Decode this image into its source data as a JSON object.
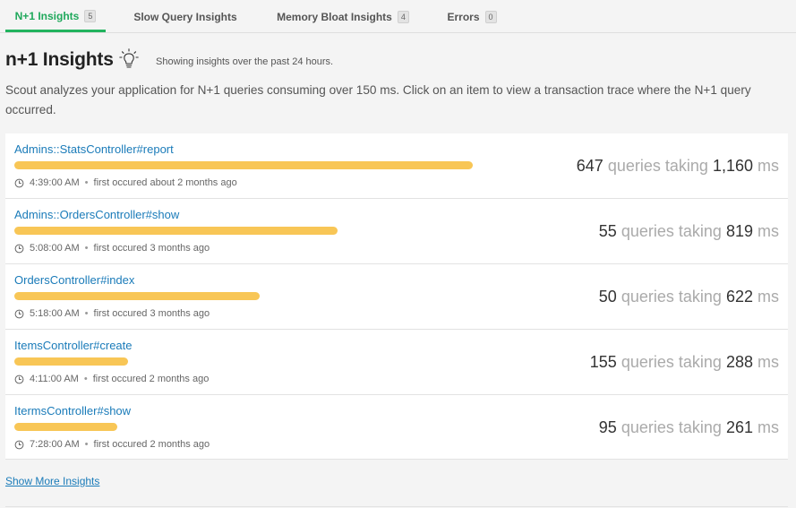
{
  "tabs": [
    {
      "label": "N+1 Insights",
      "badge": "5",
      "active": true
    },
    {
      "label": "Slow Query Insights",
      "badge": "",
      "active": false
    },
    {
      "label": "Memory Bloat Insights",
      "badge": "4",
      "active": false
    },
    {
      "label": "Errors",
      "badge": "0",
      "active": false
    }
  ],
  "header": {
    "title": "n+1 Insights",
    "icon": "lightbulb-icon",
    "subtitle": "Showing insights over the past 24 hours."
  },
  "description": "Scout analyzes your application for N+1 queries consuming over 150 ms. Click on an item to view a transaction trace where the N+1 query occurred.",
  "insights": [
    {
      "name": "Admins::StatsController#report",
      "time": "4:39:00 AM",
      "first_occured": "first occured about 2 months ago",
      "queries": "647",
      "taking_ms": "1,160",
      "bar_fraction": 1.0
    },
    {
      "name": "Admins::OrdersController#show",
      "time": "5:08:00 AM",
      "first_occured": "first occured 3 months ago",
      "queries": "55",
      "taking_ms": "819",
      "bar_fraction": 0.706
    },
    {
      "name": "OrdersController#index",
      "time": "5:18:00 AM",
      "first_occured": "first occured 3 months ago",
      "queries": "50",
      "taking_ms": "622",
      "bar_fraction": 0.536
    },
    {
      "name": "ItemsController#create",
      "time": "4:11:00 AM",
      "first_occured": "first occured 2 months ago",
      "queries": "155",
      "taking_ms": "288",
      "bar_fraction": 0.248
    },
    {
      "name": "ItermsController#show",
      "time": "7:28:00 AM",
      "first_occured": "first occured 2 months ago",
      "queries": "95",
      "taking_ms": "261",
      "bar_fraction": 0.225
    }
  ],
  "labels": {
    "queries_taking": "queries taking",
    "ms": "ms",
    "show_more": "Show More Insights",
    "dot": "•"
  },
  "colors": {
    "accent_green": "#22b35e",
    "link_blue": "#1a7bb9",
    "bar_yellow": "#f8c656"
  }
}
